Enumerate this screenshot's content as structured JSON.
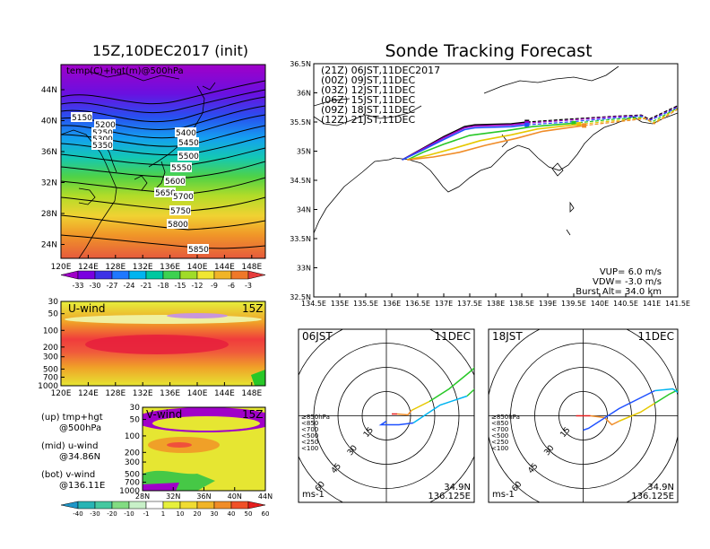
{
  "left_panel": {
    "title": "15Z,10DEC2017 (init)",
    "map_label": "temp(C)+hgt(m)@500hPa",
    "lat_ticks": [
      "44N",
      "40N",
      "36N",
      "32N",
      "28N",
      "24N"
    ],
    "lon_ticks": [
      "120E",
      "124E",
      "128E",
      "132E",
      "136E",
      "140E",
      "144E",
      "148E"
    ],
    "contour_labels": [
      "5150",
      "5200",
      "5250",
      "5300",
      "5350",
      "5400",
      "5450",
      "5500",
      "5550",
      "5600",
      "5650",
      "5700",
      "5750",
      "5800",
      "5850"
    ],
    "temp_colorbar": {
      "labels": [
        "-33",
        "-30",
        "-27",
        "-24",
        "-21",
        "-18",
        "-15",
        "-12",
        "-9",
        "-6",
        "-3"
      ],
      "colors": [
        "#a000c8",
        "#7a00e0",
        "#3c32e6",
        "#1e78ff",
        "#00b4f0",
        "#00c8a0",
        "#3cd250",
        "#a0dc28",
        "#f0e632",
        "#f0b428",
        "#f07828",
        "#e63c3c"
      ]
    }
  },
  "uwind_panel": {
    "label": "U-wind",
    "time": "15Z",
    "p_ticks": [
      "30",
      "50",
      "100",
      "200",
      "300",
      "500",
      "700",
      "1000"
    ],
    "lon_ticks": [
      "120E",
      "124E",
      "128E",
      "132E",
      "136E",
      "140E",
      "144E",
      "148E"
    ]
  },
  "vwind_panel": {
    "label": "V-wind",
    "time": "15Z",
    "p_ticks": [
      "30",
      "50",
      "100",
      "200",
      "300",
      "500",
      "700",
      "1000"
    ],
    "lat_ticks": [
      "28N",
      "32N",
      "36N",
      "40N",
      "44N"
    ]
  },
  "legend_notes": {
    "up_line1": "(up) tmp+hgt",
    "up_line2": "@500hPa",
    "mid_line1": "(mid) u-wind",
    "mid_line2": "@34.86N",
    "bot_line1": "(bot) v-wind",
    "bot_line2": "@136.11E"
  },
  "wind_colorbar": {
    "labels": [
      "-40",
      "-30",
      "-20",
      "-10",
      "-1",
      "1",
      "10",
      "20",
      "30",
      "40",
      "50",
      "60"
    ],
    "colors": [
      "#1e96c8",
      "#28b4b4",
      "#46c8a0",
      "#82dc82",
      "#c8f0c8",
      "#ffffff",
      "#e6f03c",
      "#f0dc32",
      "#f0b428",
      "#f08c28",
      "#f05028",
      "#e61e1e"
    ]
  },
  "sonde_panel": {
    "title": "Sonde Tracking Forecast",
    "legend": [
      {
        "text": "(21Z)  06JST,11DEC2017",
        "color": "#000000"
      },
      {
        "text": "(00Z)  09JST,11DEC",
        "color": "#a000c8"
      },
      {
        "text": "(03Z)  12JST,11DEC",
        "color": "#1e50ff"
      },
      {
        "text": "(06Z)  15JST,11DEC",
        "color": "#28c828"
      },
      {
        "text": "(09Z)  18JST,11DEC",
        "color": "#e6c800"
      },
      {
        "text": "(12Z)  21JST,11DEC",
        "color": "#f08c28"
      }
    ],
    "lat_ticks": [
      "36.5N",
      "36N",
      "35.5N",
      "35N",
      "34.5N",
      "34N",
      "33.5N",
      "33N",
      "32.5N"
    ],
    "lon_ticks": [
      "134.5E",
      "135E",
      "135.5E",
      "136E",
      "136.5E",
      "137E",
      "137.5E",
      "138E",
      "138.5E",
      "139E",
      "139.5E",
      "140E",
      "140.5E",
      "141E",
      "141.5E"
    ],
    "vup": "VUP=  6.0 m/s",
    "vdw": "VDW= -3.0 m/s",
    "burst": "Burst Alt= 34.0 km"
  },
  "hodographs": [
    {
      "time": "06JST",
      "date": "11DEC",
      "lat": "34.9N",
      "lon": "136.125E",
      "unit": "ms-1"
    },
    {
      "time": "18JST",
      "date": "11DEC",
      "lat": "34.9N",
      "lon": "136.125E",
      "unit": "ms-1"
    }
  ],
  "hodo_rings": [
    "15",
    "30",
    "45",
    "60"
  ],
  "hodo_legend": [
    {
      "text": "≥850hPa",
      "color": "#e61e1e"
    },
    {
      "text": "<850",
      "color": "#f08c28"
    },
    {
      "text": "<700",
      "color": "#e6c800"
    },
    {
      "text": "<500",
      "color": "#28c828"
    },
    {
      "text": "<250",
      "color": "#00b4f0"
    },
    {
      "text": "<100",
      "color": "#1e50ff"
    }
  ],
  "chart_data": [
    {
      "type": "heatmap",
      "title": "15Z,10DEC2017 (init)",
      "subtitle": "temp(C)+hgt(m)@500hPa",
      "xlim": [
        120,
        150
      ],
      "ylim": [
        22,
        47
      ],
      "contours_m": [
        5150,
        5200,
        5250,
        5300,
        5350,
        5400,
        5450,
        5500,
        5550,
        5600,
        5650,
        5700,
        5750,
        5800,
        5850
      ]
    },
    {
      "type": "heatmap",
      "title": "U-wind",
      "xlim": [
        120,
        150
      ],
      "ylim": [
        1000,
        30
      ]
    },
    {
      "type": "heatmap",
      "title": "V-wind",
      "xlim": [
        28,
        44
      ],
      "ylim": [
        1000,
        30
      ]
    },
    {
      "type": "line",
      "title": "Sonde Tracking Forecast",
      "xlim": [
        134.5,
        141.5
      ],
      "ylim": [
        32.5,
        36.5
      ],
      "series": [
        {
          "name": "(21Z)  06JST,11DEC2017",
          "color": "#000000",
          "x": [
            136.2,
            136.6,
            137.0,
            137.4,
            137.6,
            138.3,
            138.6,
            139.4,
            140.3,
            140.8,
            140.95,
            141.5
          ],
          "y": [
            34.85,
            35.05,
            35.25,
            35.42,
            35.45,
            35.47,
            35.5,
            35.55,
            35.6,
            35.62,
            35.55,
            35.78
          ]
        },
        {
          "name": "(00Z)  09JST,11DEC",
          "color": "#a000c8",
          "x": [
            136.2,
            136.6,
            137.0,
            137.4,
            137.6,
            138.3,
            138.6,
            139.4,
            140.3,
            140.8,
            140.95,
            141.5
          ],
          "y": [
            34.85,
            35.04,
            35.23,
            35.4,
            35.43,
            35.45,
            35.48,
            35.53,
            35.59,
            35.61,
            35.53,
            35.76
          ]
        },
        {
          "name": "(03Z)  12JST,11DEC",
          "color": "#1e50ff",
          "x": [
            136.2,
            136.6,
            137.0,
            137.4,
            137.6,
            138.3,
            138.6,
            139.4,
            140.3,
            140.8,
            140.95,
            141.5
          ],
          "y": [
            34.85,
            35.02,
            35.2,
            35.37,
            35.4,
            35.42,
            35.45,
            35.5,
            35.57,
            35.6,
            35.52,
            35.75
          ]
        },
        {
          "name": "(06Z)  15JST,11DEC",
          "color": "#28c828",
          "x": [
            136.3,
            136.6,
            137.0,
            137.5,
            138.2,
            138.7,
            139.5,
            140.3,
            140.8,
            141.0,
            141.5
          ],
          "y": [
            34.85,
            34.98,
            35.12,
            35.27,
            35.35,
            35.42,
            35.48,
            35.55,
            35.58,
            35.5,
            35.74
          ]
        },
        {
          "name": "(09Z)  18JST,11DEC",
          "color": "#e6c800",
          "x": [
            136.3,
            136.7,
            137.2,
            137.7,
            138.3,
            138.8,
            139.6,
            140.4,
            140.85,
            141.02,
            141.5
          ],
          "y": [
            34.85,
            34.93,
            35.05,
            35.18,
            35.28,
            35.38,
            35.46,
            35.53,
            35.57,
            35.48,
            35.73
          ]
        },
        {
          "name": "(12Z)  21JST,11DEC",
          "color": "#f08c28",
          "x": [
            136.3,
            136.8,
            137.3,
            137.8,
            138.4,
            138.9,
            139.7,
            140.5,
            140.9,
            141.05,
            141.5
          ],
          "y": [
            34.85,
            34.9,
            34.98,
            35.1,
            35.22,
            35.34,
            35.44,
            35.52,
            35.56,
            35.47,
            35.72
          ]
        }
      ]
    }
  ]
}
